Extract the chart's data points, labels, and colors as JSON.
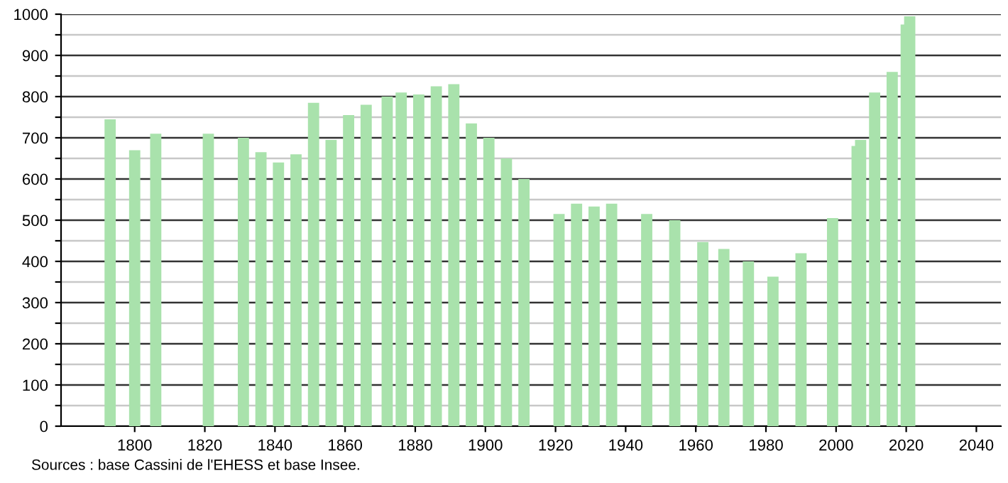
{
  "chart_data": {
    "type": "bar",
    "color": "#a9e2ac",
    "x": [
      1793,
      1800,
      1806,
      1821,
      1831,
      1836,
      1841,
      1846,
      1851,
      1856,
      1861,
      1866,
      1872,
      1876,
      1881,
      1886,
      1891,
      1896,
      1901,
      1906,
      1911,
      1921,
      1926,
      1931,
      1936,
      1946,
      1954,
      1962,
      1968,
      1975,
      1982,
      1990,
      1999,
      2006,
      2007,
      2011,
      2016,
      2020,
      2021
    ],
    "values": [
      745,
      670,
      710,
      710,
      700,
      665,
      640,
      660,
      785,
      695,
      755,
      780,
      800,
      810,
      805,
      825,
      830,
      735,
      700,
      650,
      600,
      515,
      540,
      533,
      540,
      515,
      500,
      447,
      430,
      400,
      363,
      420,
      505,
      680,
      695,
      810,
      860,
      975,
      995
    ],
    "xlim": [
      1779,
      2047
    ],
    "xticks": [
      1800,
      1820,
      1840,
      1860,
      1880,
      1900,
      1920,
      1940,
      1960,
      1980,
      2000,
      2020,
      2040
    ],
    "ylim": [
      0,
      1000
    ],
    "yticks": [
      0,
      {
        "value": 50,
        "label": null
      },
      100,
      {
        "value": 150,
        "label": null
      },
      200,
      {
        "value": 250,
        "label": null
      },
      300,
      {
        "value": 350,
        "label": null
      },
      400,
      {
        "value": 450,
        "label": null
      },
      500,
      {
        "value": 550,
        "label": null
      },
      600,
      {
        "value": 650,
        "label": null
      },
      700,
      {
        "value": 750,
        "label": null
      },
      800,
      {
        "value": 850,
        "label": null
      },
      900,
      {
        "value": 950,
        "label": null
      },
      1000
    ],
    "grid": "y",
    "annotations": [
      "Sources : base Cassini de l'EHESS et base Insee."
    ]
  }
}
